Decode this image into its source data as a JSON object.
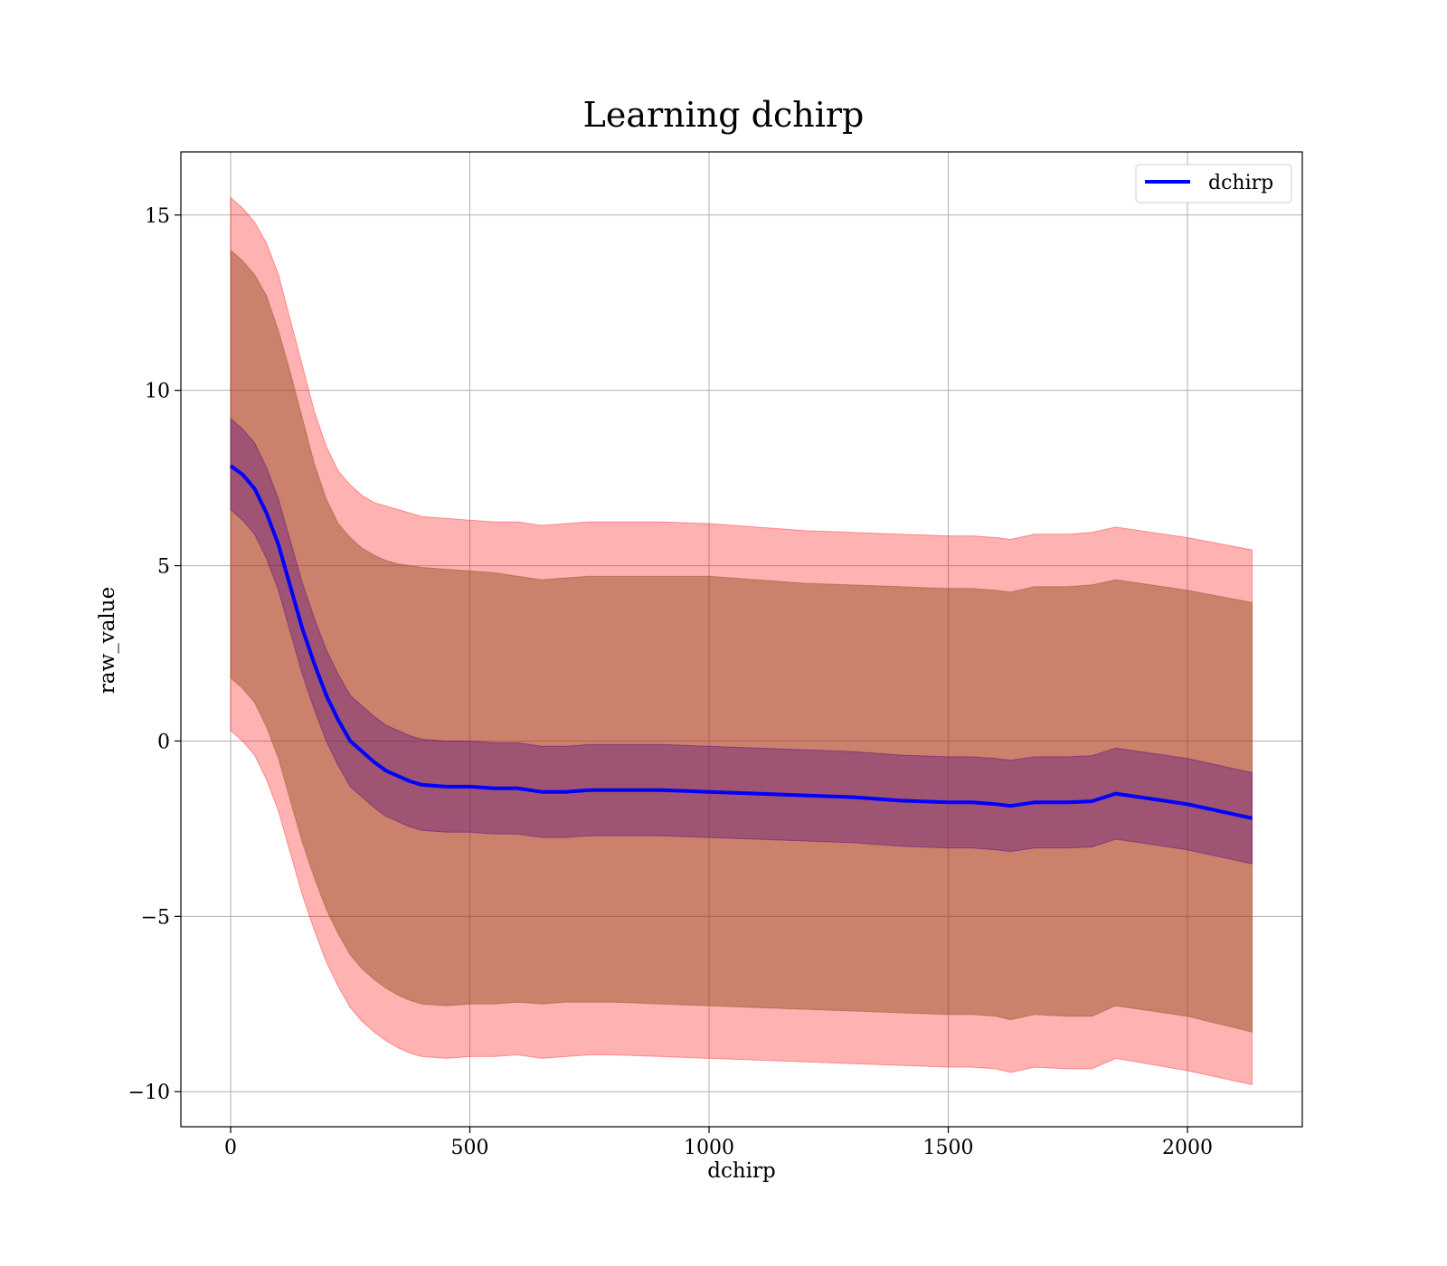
{
  "chart_data": {
    "type": "line",
    "title": "Learning dchirp",
    "xlabel": "dchirp",
    "ylabel": "raw_value",
    "xlim": [
      -104,
      2240
    ],
    "ylim": [
      -11,
      16.8
    ],
    "xticks": [
      0,
      500,
      1000,
      1500,
      2000
    ],
    "xtick_labels": [
      "0",
      "500",
      "1000",
      "1500",
      "2000"
    ],
    "yticks": [
      -10,
      -5,
      0,
      5,
      10,
      15
    ],
    "ytick_labels": [
      "−10",
      "−5",
      "0",
      "5",
      "10",
      "15"
    ],
    "grid": true,
    "legend": {
      "position": "top-right",
      "entries": [
        "dchirp"
      ]
    },
    "colors": {
      "line": "#0000ff",
      "outer_band": "#ff0000",
      "middle_band": "#8b4513",
      "inner_band": "#4b0082"
    },
    "x": [
      0,
      25,
      50,
      75,
      100,
      125,
      150,
      175,
      200,
      225,
      250,
      275,
      300,
      325,
      350,
      375,
      400,
      450,
      500,
      550,
      600,
      650,
      700,
      750,
      800,
      900,
      1000,
      1100,
      1200,
      1300,
      1400,
      1500,
      1550,
      1600,
      1630,
      1680,
      1750,
      1800,
      1850,
      2000,
      2135
    ],
    "series": [
      {
        "name": "dchirp",
        "values": [
          7.85,
          7.6,
          7.2,
          6.5,
          5.6,
          4.4,
          3.2,
          2.2,
          1.3,
          0.6,
          0.0,
          -0.3,
          -0.6,
          -0.85,
          -1.0,
          -1.15,
          -1.25,
          -1.3,
          -1.3,
          -1.35,
          -1.35,
          -1.45,
          -1.45,
          -1.4,
          -1.4,
          -1.4,
          -1.45,
          -1.5,
          -1.55,
          -1.6,
          -1.7,
          -1.75,
          -1.75,
          -1.8,
          -1.85,
          -1.75,
          -1.75,
          -1.72,
          -1.5,
          -1.8,
          -2.2
        ]
      }
    ],
    "bands": {
      "outer_upper": [
        15.5,
        15.2,
        14.8,
        14.2,
        13.3,
        12.0,
        10.7,
        9.4,
        8.4,
        7.7,
        7.3,
        7.0,
        6.8,
        6.7,
        6.6,
        6.5,
        6.4,
        6.35,
        6.3,
        6.25,
        6.25,
        6.15,
        6.2,
        6.25,
        6.25,
        6.25,
        6.2,
        6.1,
        6.0,
        5.95,
        5.9,
        5.85,
        5.85,
        5.8,
        5.75,
        5.9,
        5.9,
        5.95,
        6.1,
        5.8,
        5.45
      ],
      "middle_upper": [
        14.0,
        13.7,
        13.3,
        12.7,
        11.7,
        10.5,
        9.2,
        7.9,
        6.9,
        6.2,
        5.8,
        5.5,
        5.3,
        5.15,
        5.05,
        5.0,
        4.95,
        4.9,
        4.85,
        4.8,
        4.7,
        4.6,
        4.65,
        4.7,
        4.7,
        4.7,
        4.7,
        4.6,
        4.5,
        4.45,
        4.4,
        4.35,
        4.35,
        4.3,
        4.25,
        4.4,
        4.4,
        4.45,
        4.6,
        4.3,
        3.95
      ],
      "inner_upper": [
        9.2,
        8.9,
        8.5,
        7.8,
        6.9,
        5.7,
        4.5,
        3.5,
        2.6,
        1.9,
        1.3,
        1.0,
        0.7,
        0.45,
        0.3,
        0.15,
        0.05,
        0.0,
        0.0,
        -0.05,
        -0.05,
        -0.15,
        -0.15,
        -0.1,
        -0.1,
        -0.1,
        -0.15,
        -0.2,
        -0.25,
        -0.3,
        -0.4,
        -0.45,
        -0.45,
        -0.5,
        -0.55,
        -0.45,
        -0.45,
        -0.42,
        -0.2,
        -0.5,
        -0.9
      ],
      "inner_lower": [
        6.6,
        6.3,
        5.9,
        5.2,
        4.3,
        3.1,
        1.9,
        0.9,
        0.0,
        -0.7,
        -1.3,
        -1.6,
        -1.9,
        -2.15,
        -2.3,
        -2.45,
        -2.55,
        -2.6,
        -2.6,
        -2.65,
        -2.65,
        -2.75,
        -2.75,
        -2.7,
        -2.7,
        -2.7,
        -2.75,
        -2.8,
        -2.85,
        -2.9,
        -3.0,
        -3.05,
        -3.05,
        -3.1,
        -3.15,
        -3.05,
        -3.05,
        -3.02,
        -2.8,
        -3.1,
        -3.5
      ],
      "middle_lower": [
        1.8,
        1.5,
        1.1,
        0.4,
        -0.5,
        -1.7,
        -2.9,
        -3.9,
        -4.8,
        -5.5,
        -6.1,
        -6.5,
        -6.8,
        -7.05,
        -7.25,
        -7.4,
        -7.5,
        -7.55,
        -7.5,
        -7.5,
        -7.45,
        -7.5,
        -7.45,
        -7.45,
        -7.45,
        -7.5,
        -7.55,
        -7.6,
        -7.65,
        -7.7,
        -7.75,
        -7.8,
        -7.8,
        -7.85,
        -7.95,
        -7.8,
        -7.85,
        -7.85,
        -7.55,
        -7.85,
        -8.3
      ],
      "outer_lower": [
        0.3,
        0.0,
        -0.4,
        -1.1,
        -2.0,
        -3.2,
        -4.4,
        -5.4,
        -6.3,
        -7.0,
        -7.6,
        -8.0,
        -8.3,
        -8.55,
        -8.75,
        -8.9,
        -9.0,
        -9.05,
        -9.0,
        -9.0,
        -8.95,
        -9.05,
        -9.0,
        -8.95,
        -8.95,
        -9.0,
        -9.05,
        -9.1,
        -9.15,
        -9.2,
        -9.25,
        -9.3,
        -9.3,
        -9.35,
        -9.45,
        -9.3,
        -9.35,
        -9.35,
        -9.05,
        -9.4,
        -9.8
      ]
    }
  }
}
